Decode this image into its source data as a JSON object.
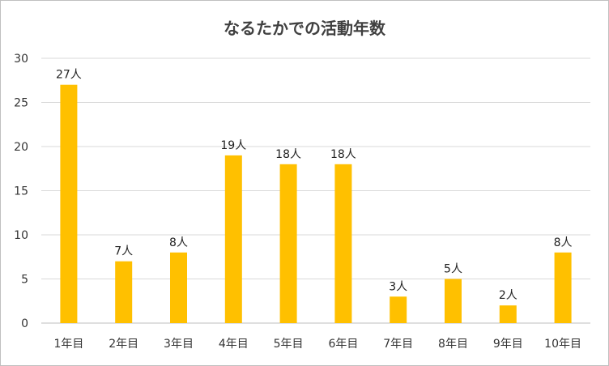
{
  "chart_data": {
    "type": "bar",
    "title": "なるたかでの活動年数",
    "categories": [
      "1年目",
      "2年目",
      "3年目",
      "4年目",
      "5年目",
      "6年目",
      "7年目",
      "8年目",
      "9年目",
      "10年目"
    ],
    "values": [
      27,
      7,
      8,
      19,
      18,
      18,
      3,
      5,
      2,
      8
    ],
    "data_labels": [
      "27人",
      "7人",
      "8人",
      "19人",
      "18人",
      "18人",
      "3人",
      "5人",
      "2人",
      "8人"
    ],
    "y_ticks": [
      0,
      5,
      10,
      15,
      20,
      25,
      30
    ],
    "ylim": [
      0,
      30
    ],
    "xlabel": "",
    "ylabel": "",
    "grid": true,
    "legend": "none",
    "colors": {
      "bar": "#FFC000",
      "grid": "#d9d9d9",
      "axis": "#bfbfbf"
    }
  }
}
